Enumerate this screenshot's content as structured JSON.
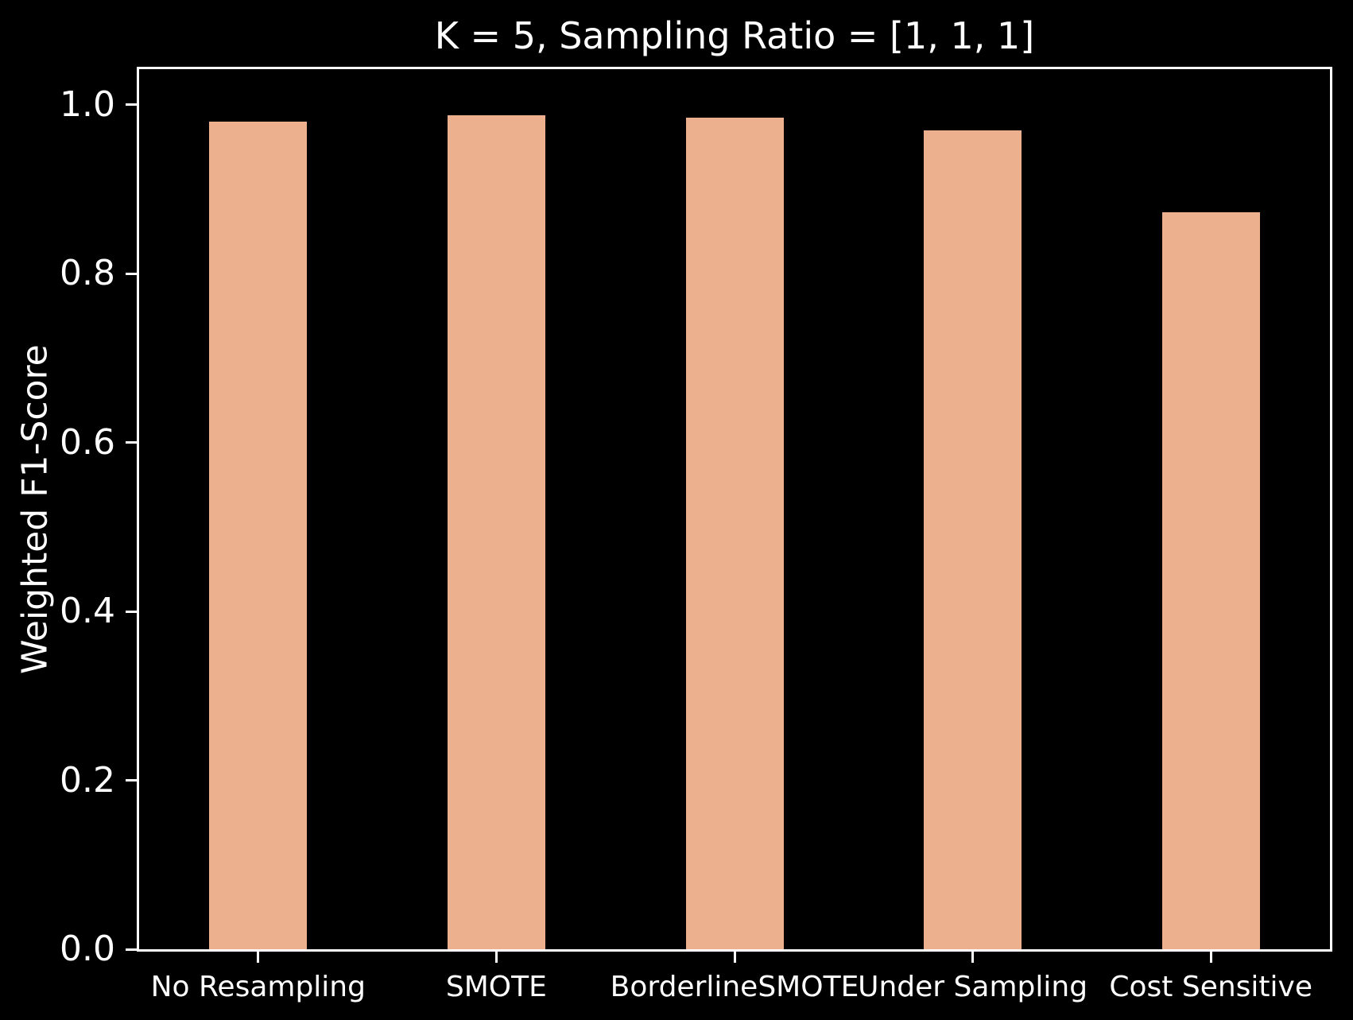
{
  "chart_data": {
    "type": "bar",
    "title": "K = 5, Sampling Ratio = [1, 1, 1]",
    "xlabel": "",
    "ylabel": "Weighted F1-Score",
    "categories": [
      "No Resampling",
      "SMOTE",
      "BorderlineSMOTE",
      "Under Sampling",
      "Cost Sensitive"
    ],
    "values": [
      0.98,
      0.987,
      0.985,
      0.97,
      0.873
    ],
    "yticks": [
      0.0,
      0.2,
      0.4,
      0.6,
      0.8,
      1.0
    ],
    "ytick_labels": [
      "0.0",
      "0.2",
      "0.4",
      "0.6",
      "0.8",
      "1.0"
    ],
    "ylim": [
      0,
      1.042
    ],
    "grid": false,
    "legend": "none",
    "colors": {
      "background": "#000000",
      "bar_fill": "#edb08e",
      "axis": "#ffffff",
      "text": "#ffffff"
    }
  }
}
